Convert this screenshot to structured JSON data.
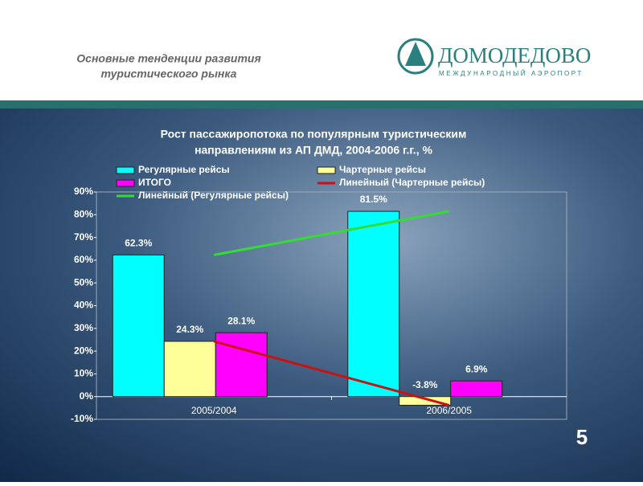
{
  "header": {
    "title_lines": [
      "Основные тенденции развития",
      "туристического рынка"
    ]
  },
  "logo": {
    "name": "ДОМОДЕДОВО",
    "subtitle": "МЕЖДУНАРОДНЫЙ АЭРОПОРТ"
  },
  "page_number": 5,
  "chart_data": {
    "type": "bar",
    "title": [
      "Рост пассажиропотока по популярным туристическим",
      "направлениям из АП ДМД, 2004-2006 г.г., %"
    ],
    "categories": [
      "2005/2004",
      "2006/2005"
    ],
    "series": [
      {
        "name": "Регулярные рейсы",
        "color": "#00ffff",
        "values": [
          62.3,
          81.5
        ],
        "value_labels": [
          "62.3%",
          "81.5%"
        ]
      },
      {
        "name": "Чартерные рейсы",
        "color": "#ffff99",
        "values": [
          24.3,
          -3.8
        ],
        "value_labels": [
          "24.3%",
          "-3.8%"
        ]
      },
      {
        "name": "ИТОГО",
        "color": "#ff00ff",
        "values": [
          28.1,
          6.9
        ],
        "value_labels": [
          "28.1%",
          "6.9%"
        ]
      }
    ],
    "trendlines": [
      {
        "name": "Линейный (Регулярные рейсы)",
        "color": "#33dd33",
        "series": 0
      },
      {
        "name": "Линейный (Чартерные рейсы)",
        "color": "#cc1111",
        "series": 1
      }
    ],
    "ylim": [
      -10,
      90
    ],
    "yticks": [
      {
        "value": -10,
        "label": "-10%"
      },
      {
        "value": 0,
        "label": "0%"
      },
      {
        "value": 10,
        "label": "10%"
      },
      {
        "value": 20,
        "label": "20%"
      },
      {
        "value": 30,
        "label": "30%"
      },
      {
        "value": 40,
        "label": "40%"
      },
      {
        "value": 50,
        "label": "50%"
      },
      {
        "value": 60,
        "label": "60%"
      },
      {
        "value": 70,
        "label": "70%"
      },
      {
        "value": 80,
        "label": "80%"
      },
      {
        "value": 90,
        "label": "90%"
      }
    ]
  }
}
